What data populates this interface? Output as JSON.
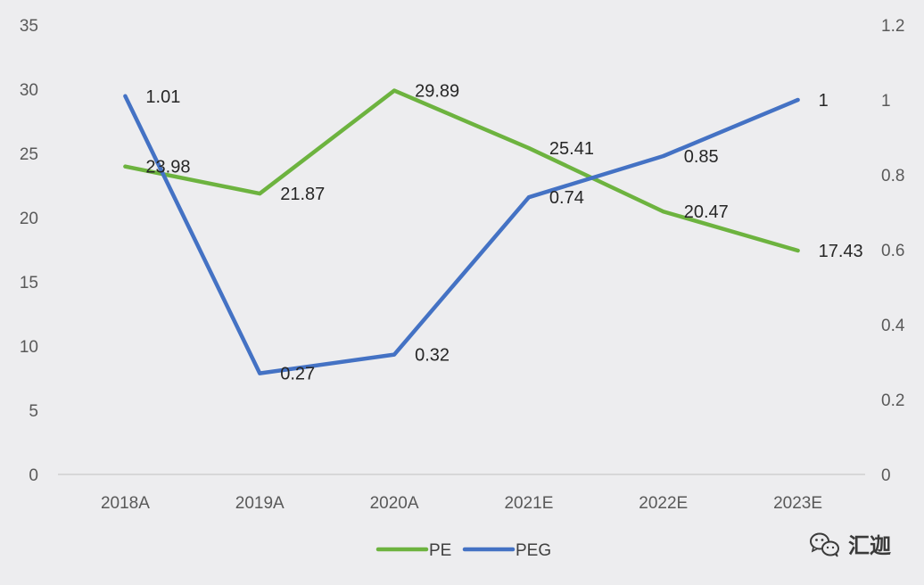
{
  "chart_data": {
    "type": "line",
    "categories": [
      "2018A",
      "2019A",
      "2020A",
      "2021E",
      "2022E",
      "2023E"
    ],
    "series": [
      {
        "name": "PE",
        "axis": "left",
        "color": "#6db33f",
        "values": [
          23.98,
          21.87,
          29.89,
          25.41,
          20.47,
          17.43
        ],
        "labels": [
          "23.98",
          "21.87",
          "29.89",
          "25.41",
          "20.47",
          "17.43"
        ]
      },
      {
        "name": "PEG",
        "axis": "right",
        "color": "#4472c4",
        "values": [
          1.01,
          0.27,
          0.32,
          0.74,
          0.85,
          1.0
        ],
        "labels": [
          "1.01",
          "0.27",
          "0.32",
          "0.74",
          "0.85",
          "1"
        ]
      }
    ],
    "y_left": {
      "min": 0,
      "max": 35,
      "ticks": [
        "0",
        "5",
        "10",
        "15",
        "20",
        "25",
        "30",
        "35"
      ]
    },
    "y_right": {
      "min": 0,
      "max": 1.2,
      "ticks": [
        "0",
        "0.2",
        "0.4",
        "0.6",
        "0.8",
        "1",
        "1.2"
      ]
    },
    "legend_position": "bottom",
    "grid": false
  },
  "watermark": {
    "text": "汇迦",
    "icon": "wechat-icon"
  }
}
